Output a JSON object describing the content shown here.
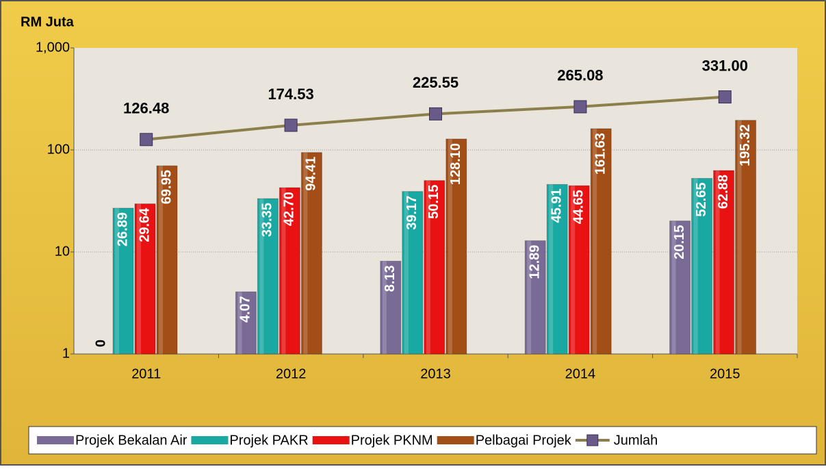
{
  "chart_data": {
    "type": "bar",
    "title": "RM Juta",
    "log_scale": true,
    "grid": true,
    "legend": "bottom",
    "categories": [
      "2011",
      "2012",
      "2013",
      "2014",
      "2015"
    ],
    "ylim": [
      1,
      1000
    ],
    "yticks": [
      {
        "value": 1000,
        "label": "1,000"
      },
      100,
      10,
      1
    ],
    "series": [
      {
        "name": "Projek Bekalan Air",
        "type": "bar",
        "color": "#7a6b96",
        "values": [
          0,
          4.07,
          8.13,
          12.89,
          20.15
        ],
        "value_labels": [
          "0",
          "4.07",
          "8.13",
          "12.89",
          "20.15"
        ]
      },
      {
        "name": "Projek PAKR",
        "type": "bar",
        "color": "#1aa9a2",
        "values": [
          26.89,
          33.35,
          39.17,
          45.91,
          52.65
        ],
        "value_labels": [
          "26.89",
          "33.35",
          "39.17",
          "45.91",
          "52.65"
        ]
      },
      {
        "name": "Projek PKNM",
        "type": "bar",
        "color": "#e81212",
        "values": [
          29.64,
          42.7,
          50.15,
          44.65,
          62.88
        ],
        "value_labels": [
          "29.64",
          "42.70",
          "50.15",
          "44.65",
          "62.88"
        ]
      },
      {
        "name": "Pelbagai Projek",
        "type": "bar",
        "color": "#a24e16",
        "values": [
          69.95,
          94.41,
          128.1,
          161.63,
          195.32
        ],
        "value_labels": [
          "69.95",
          "94.41",
          "128.10",
          "161.63",
          "195.32"
        ]
      },
      {
        "name": "Jumlah",
        "type": "line",
        "color": "#8c7f4c",
        "marker_color": "#6a5a8a",
        "values": [
          126.48,
          174.53,
          225.55,
          265.08,
          331.0
        ],
        "value_labels": [
          "126.48",
          "174.53",
          "225.55",
          "265.08",
          "331.00"
        ]
      }
    ]
  }
}
